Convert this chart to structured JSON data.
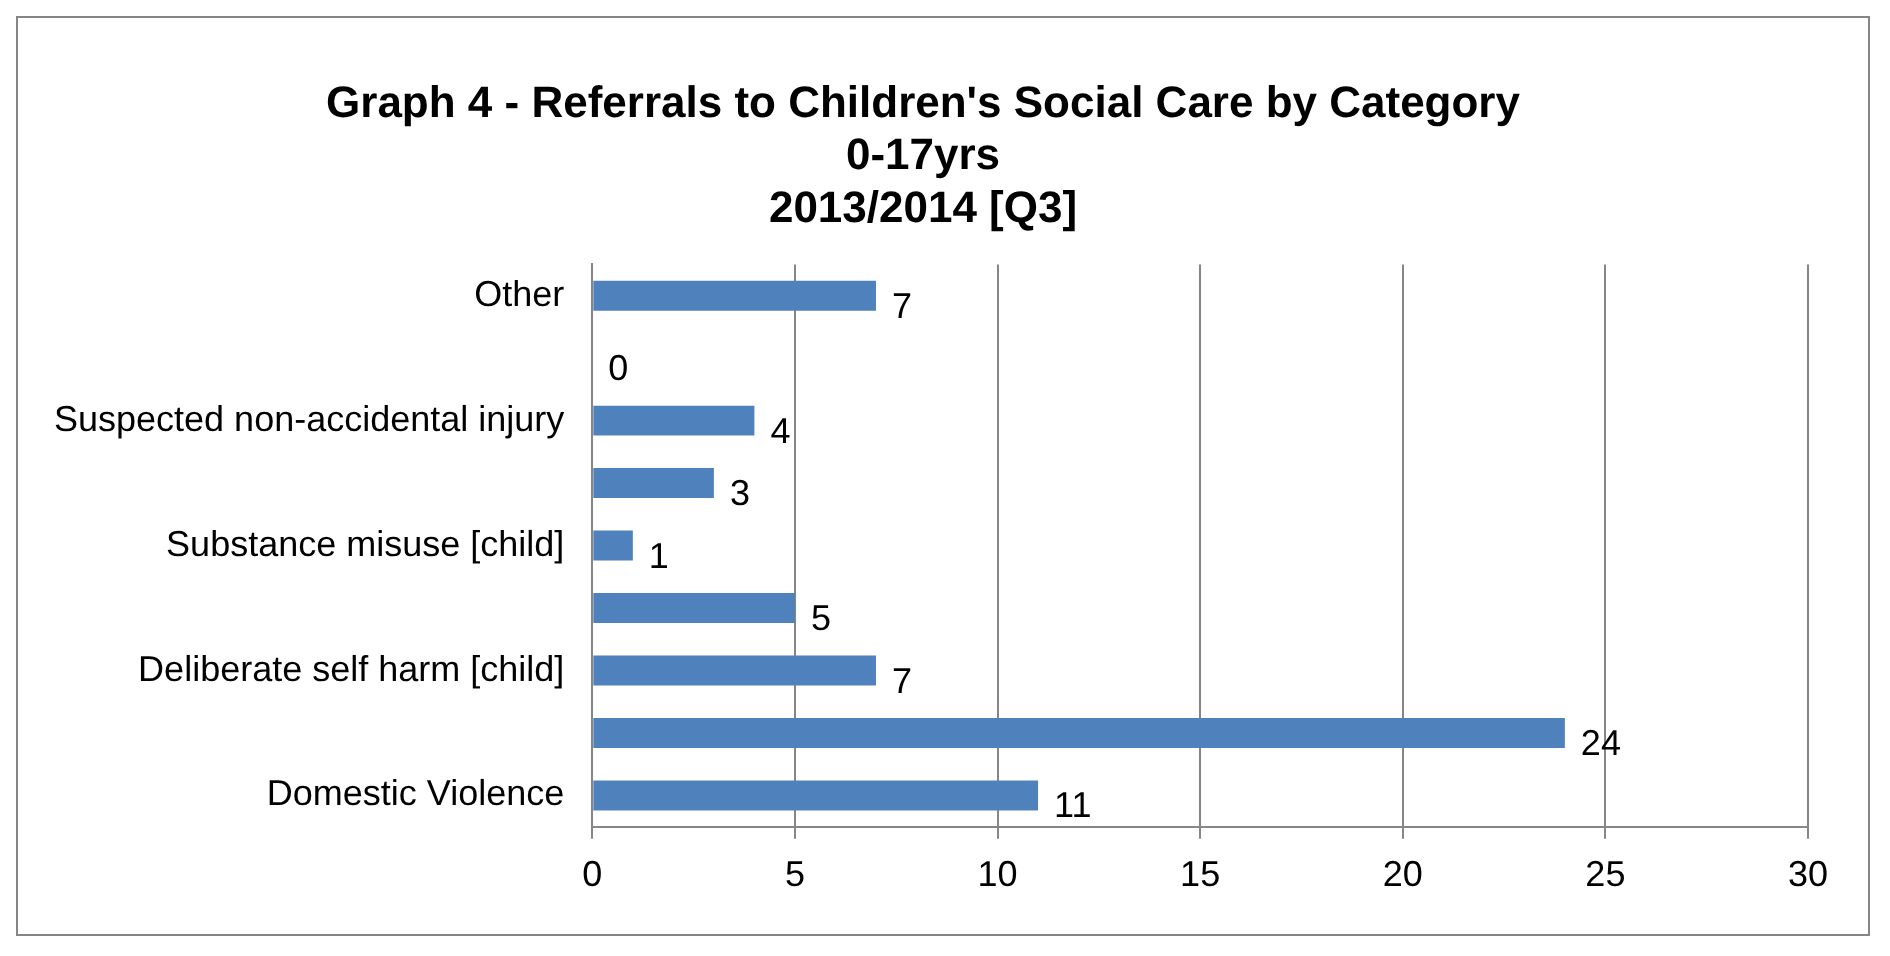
{
  "chart_data": {
    "type": "bar",
    "orientation": "horizontal",
    "title": "Graph 4 - Referrals to Children's Social Care by Category\n0-17yrs\n2013/2014 [Q3]",
    "categories": [
      "Other",
      null,
      "Suspected non-accidental injury",
      null,
      "Substance misuse [child]",
      null,
      "Deliberate self harm [child]",
      null,
      "Domestic Violence"
    ],
    "values": [
      7,
      0,
      4,
      3,
      1,
      5,
      7,
      24,
      11
    ],
    "color": "#4f81bd",
    "xlim": [
      0,
      30
    ],
    "xticks": [
      0,
      5,
      10,
      15,
      20,
      25,
      30
    ],
    "grid": "x",
    "legend": false,
    "data_labels": true
  }
}
